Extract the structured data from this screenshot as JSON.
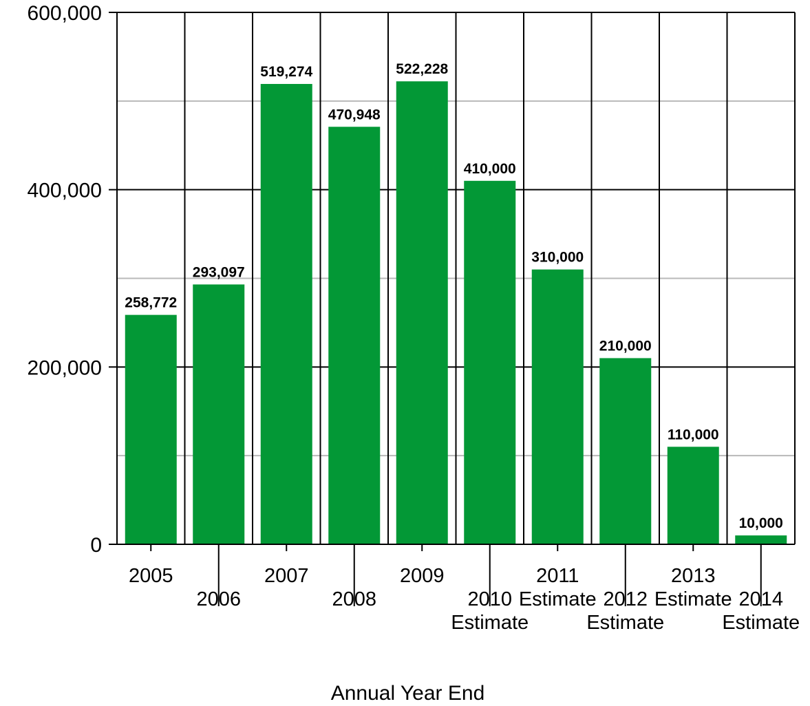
{
  "chart_data": {
    "type": "bar",
    "categories": [
      "2005",
      "2006",
      "2007",
      "2008",
      "2009",
      "2010\nEstimate",
      "2011\nEstimate",
      "2012\nEstimate",
      "2013\nEstimate",
      "2014\nEstimate"
    ],
    "values": [
      258772,
      293097,
      519274,
      470948,
      522228,
      410000,
      310000,
      210000,
      110000,
      10000
    ],
    "value_labels": [
      "258,772",
      "293,097",
      "519,274",
      "470,948",
      "522,228",
      "410,000",
      "310,000",
      "210,000",
      "110,000",
      "10,000"
    ],
    "xlabel": "Annual Year End",
    "ylabel": "",
    "ylim": [
      0,
      600000
    ],
    "y_ticks": [
      0,
      200000,
      400000,
      600000
    ],
    "y_tick_labels": [
      "0",
      "200,000",
      "400,000",
      "600,000"
    ],
    "minor_y_ticks": [
      100000,
      300000,
      500000
    ],
    "grid": true,
    "colors": {
      "bar": "#039836",
      "major_grid": "#000000",
      "minor_grid": "#b8b8b8"
    }
  }
}
